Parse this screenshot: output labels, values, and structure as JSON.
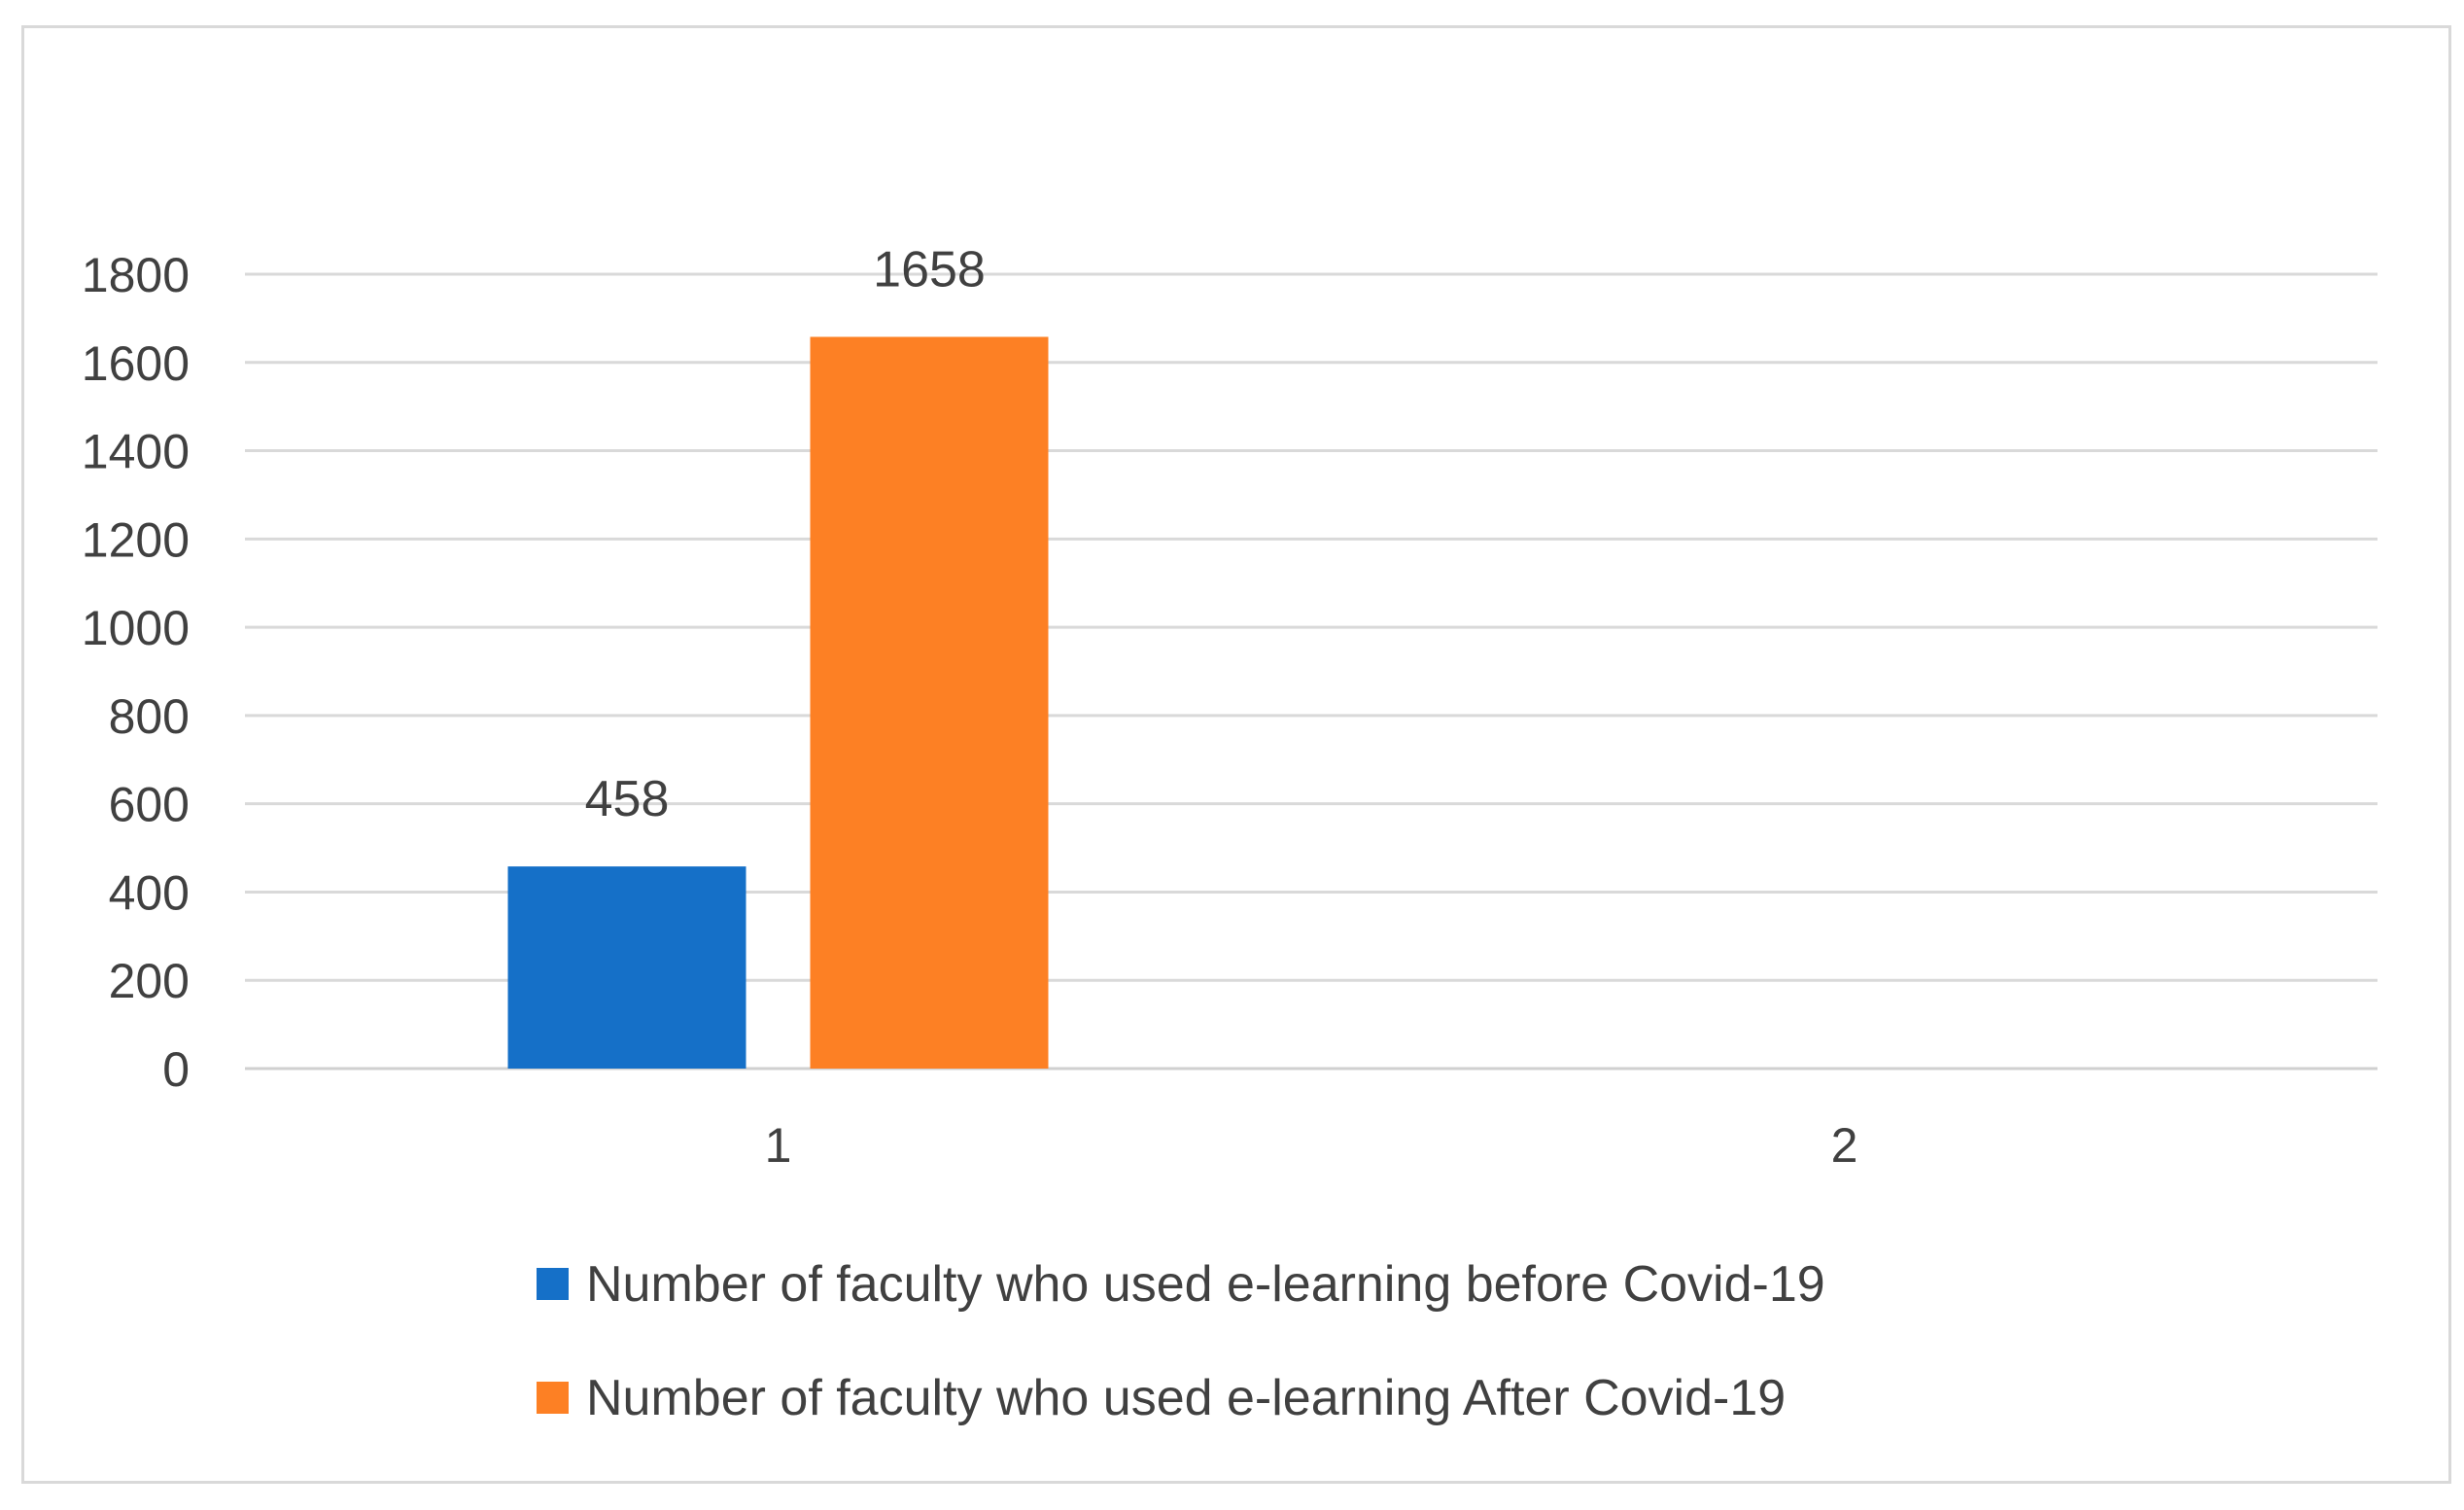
{
  "chart_data": {
    "type": "bar",
    "title": "",
    "xlabel": "",
    "ylabel": "",
    "categories": [
      "1",
      "2"
    ],
    "series": [
      {
        "name": "Number of faculty who used e-learning before Covid-19",
        "color": "#1570c8",
        "values": [
          458,
          null
        ]
      },
      {
        "name": "Number of faculty who used e-learning After Covid-19",
        "color": "#fd8024",
        "values": [
          1658,
          null
        ]
      }
    ],
    "data_labels": [
      [
        "458",
        null
      ],
      [
        "1658",
        null
      ]
    ],
    "ylim": [
      0,
      1800
    ],
    "yticks": [
      0,
      200,
      400,
      600,
      800,
      1000,
      1200,
      1400,
      1600,
      1800
    ],
    "grid": true,
    "legend_position": "bottom"
  }
}
